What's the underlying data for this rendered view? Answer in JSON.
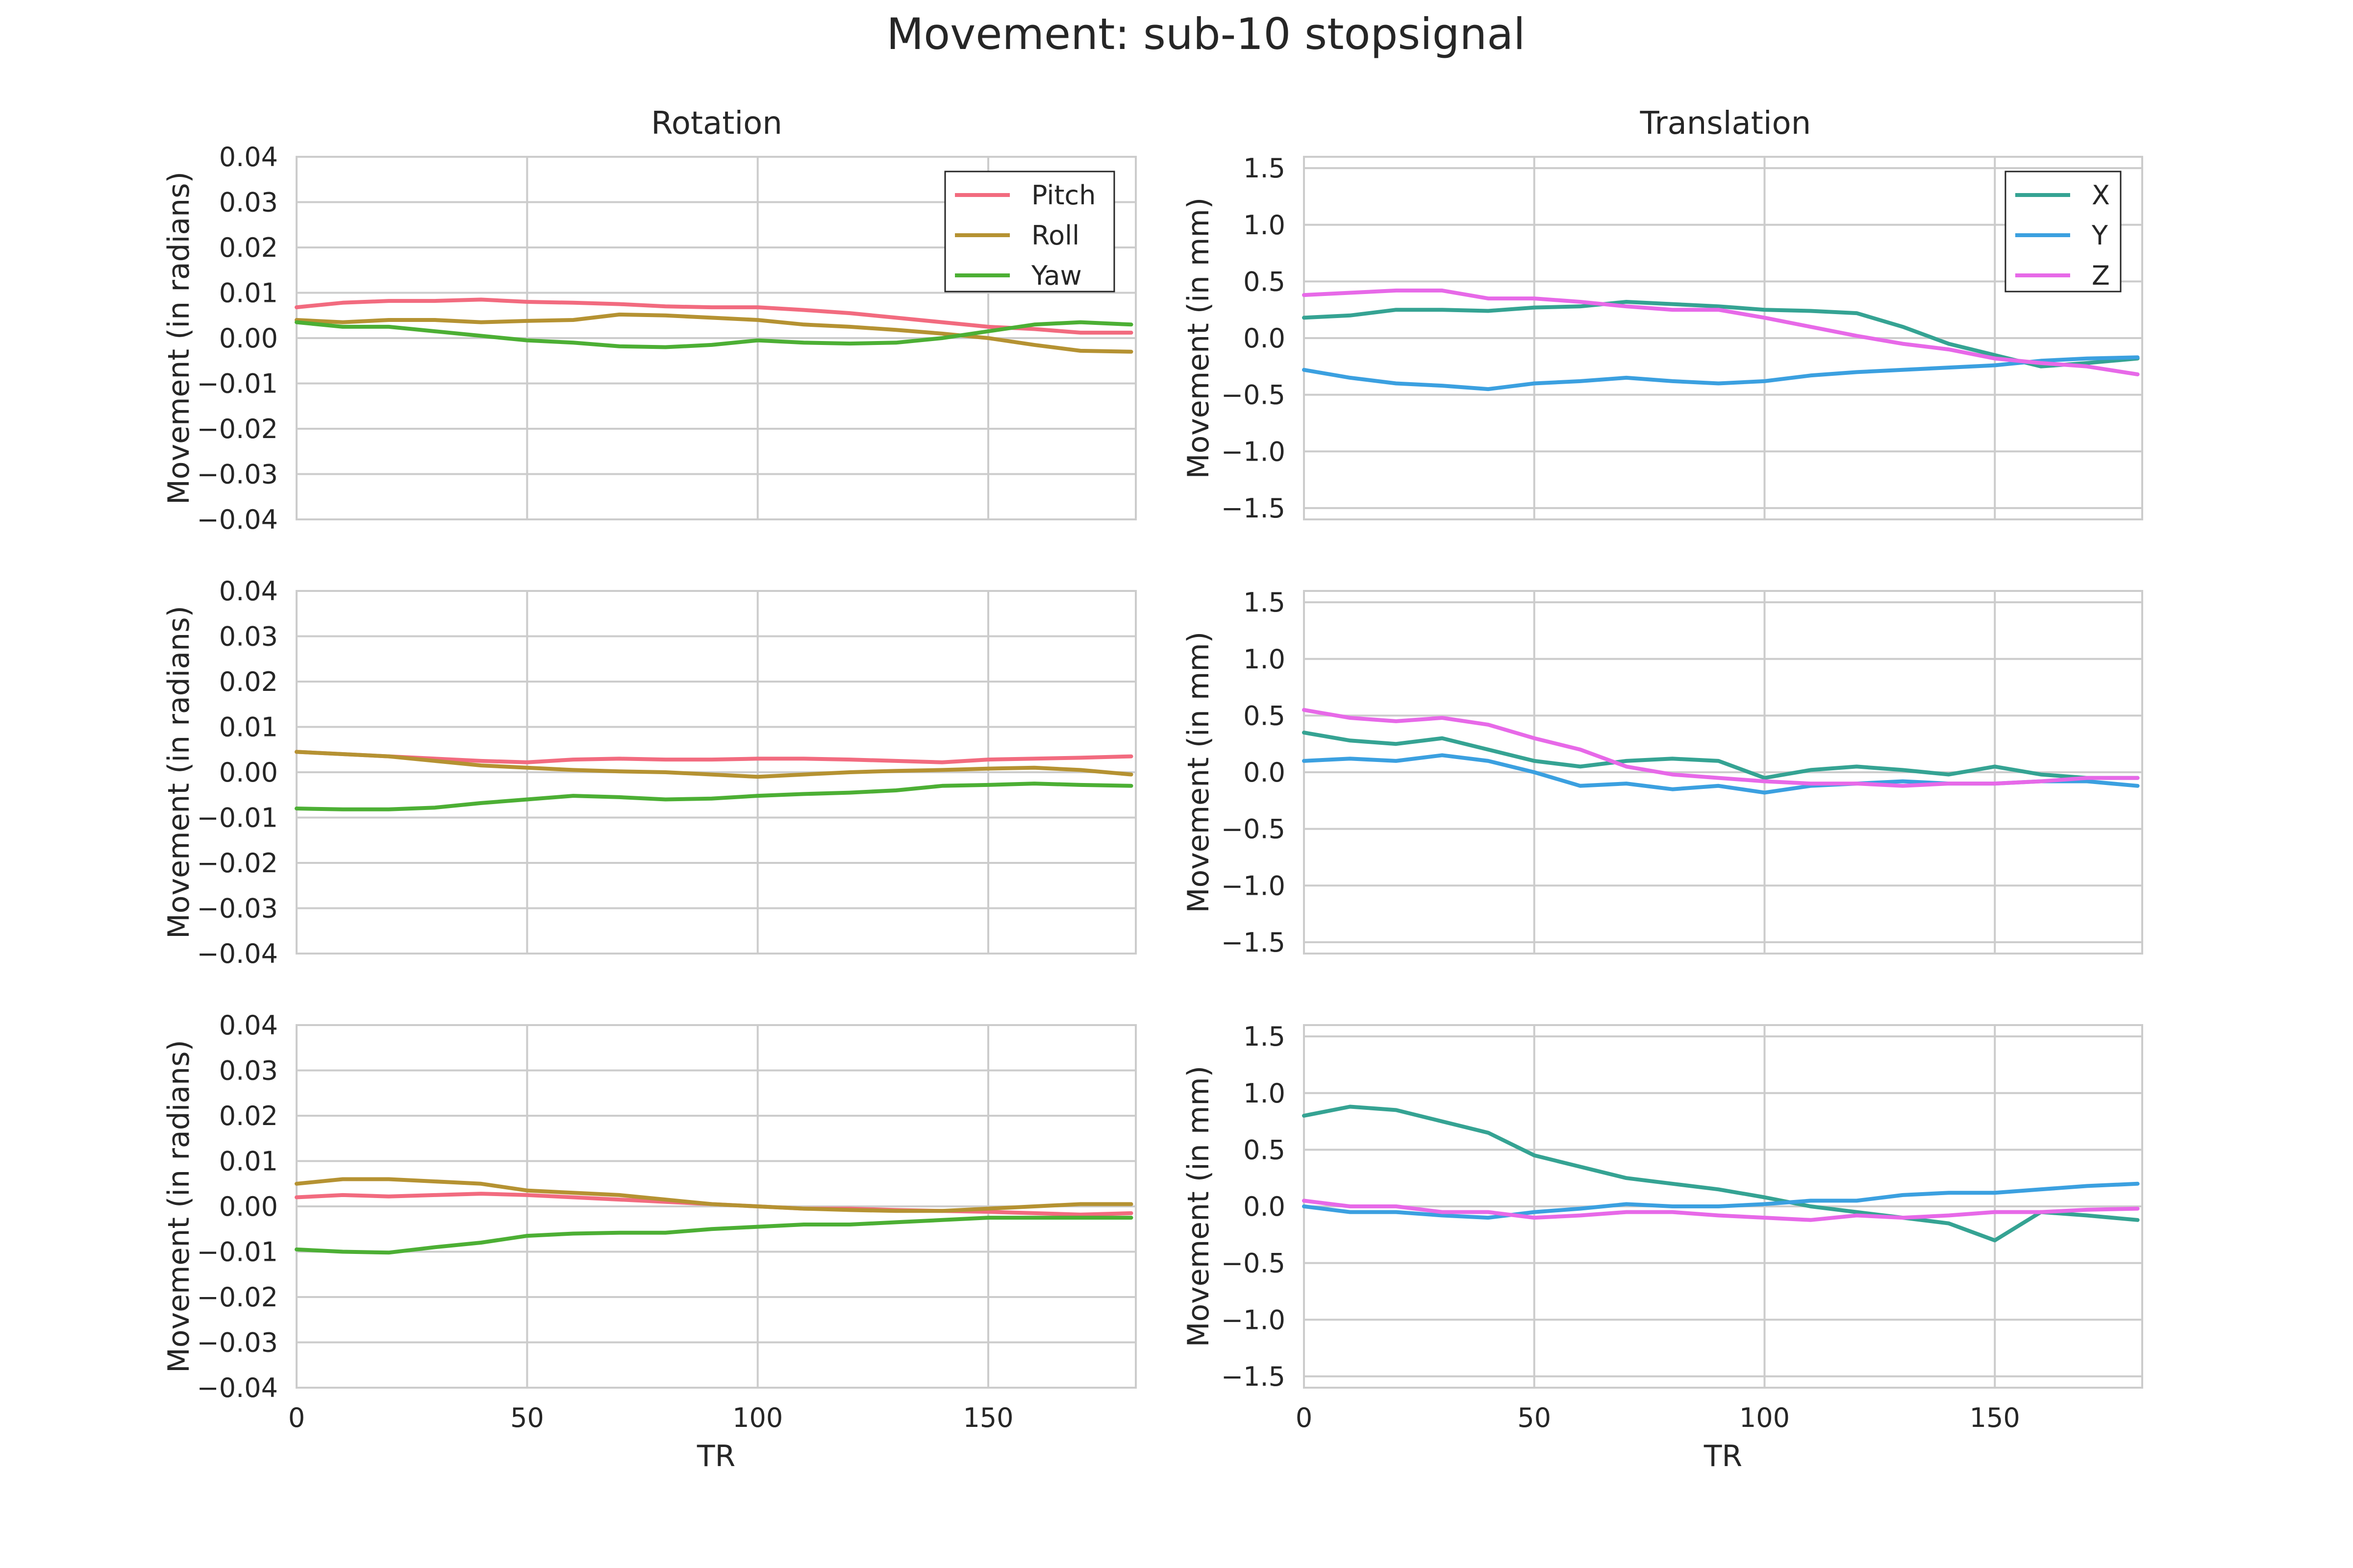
{
  "figure": {
    "suptitle": "Movement: sub-10 stopsignal",
    "col_titles": [
      "Rotation",
      "Translation"
    ]
  },
  "colors": {
    "Pitch": "#f26b7f",
    "Roll": "#b59232",
    "Yaw": "#4caf34",
    "X": "#35a393",
    "Y": "#3ba0e0",
    "Z": "#e769e8",
    "grid": "#cccccc",
    "frame": "#cccccc"
  },
  "chart_data": [
    {
      "type": "line",
      "row": 0,
      "col": 0,
      "title": "Rotation",
      "xlabel": "",
      "ylabel": "Movement (in radians)",
      "xlim": [
        0,
        182
      ],
      "ylim": [
        -0.04,
        0.04
      ],
      "xticks": [
        0,
        50,
        100,
        150
      ],
      "xticklabels": [],
      "yticks": [
        -0.04,
        -0.03,
        -0.02,
        -0.01,
        0.0,
        0.01,
        0.02,
        0.03,
        0.04
      ],
      "yticklabels": [
        "−0.04",
        "−0.03",
        "−0.02",
        "−0.01",
        "0.00",
        "0.01",
        "0.02",
        "0.03",
        "0.04"
      ],
      "legend": "top-right",
      "series": [
        {
          "name": "Pitch",
          "x": [
            0,
            10,
            20,
            30,
            40,
            50,
            60,
            70,
            80,
            90,
            100,
            110,
            120,
            130,
            140,
            150,
            160,
            170,
            181
          ],
          "values": [
            0.0068,
            0.0078,
            0.0082,
            0.0082,
            0.0085,
            0.008,
            0.0078,
            0.0075,
            0.007,
            0.0068,
            0.0068,
            0.0062,
            0.0055,
            0.0045,
            0.0035,
            0.0025,
            0.002,
            0.0012,
            0.0012
          ]
        },
        {
          "name": "Roll",
          "x": [
            0,
            10,
            20,
            30,
            40,
            50,
            60,
            70,
            80,
            90,
            100,
            110,
            120,
            130,
            140,
            150,
            160,
            170,
            181
          ],
          "values": [
            0.004,
            0.0035,
            0.004,
            0.004,
            0.0035,
            0.0038,
            0.004,
            0.0052,
            0.005,
            0.0045,
            0.004,
            0.003,
            0.0025,
            0.0018,
            0.001,
            0.0,
            -0.0015,
            -0.0028,
            -0.003
          ]
        },
        {
          "name": "Yaw",
          "x": [
            0,
            10,
            20,
            30,
            40,
            50,
            60,
            70,
            80,
            90,
            100,
            110,
            120,
            130,
            140,
            150,
            160,
            170,
            181
          ],
          "values": [
            0.0035,
            0.0025,
            0.0025,
            0.0015,
            0.0005,
            -0.0005,
            -0.001,
            -0.0018,
            -0.002,
            -0.0015,
            -0.0005,
            -0.001,
            -0.0012,
            -0.001,
            0.0,
            0.0015,
            0.003,
            0.0035,
            0.003
          ]
        }
      ]
    },
    {
      "type": "line",
      "row": 0,
      "col": 1,
      "title": "Translation",
      "xlabel": "",
      "ylabel": "Movement (in mm)",
      "xlim": [
        0,
        182
      ],
      "ylim": [
        -1.6,
        1.6
      ],
      "xticks": [
        0,
        50,
        100,
        150
      ],
      "xticklabels": [],
      "yticks": [
        -1.5,
        -1.0,
        -0.5,
        0.0,
        0.5,
        1.0,
        1.5
      ],
      "yticklabels": [
        "−1.5",
        "−1.0",
        "−0.5",
        "0.0",
        "0.5",
        "1.0",
        "1.5"
      ],
      "legend": "top-right",
      "series": [
        {
          "name": "X",
          "x": [
            0,
            10,
            20,
            30,
            40,
            50,
            60,
            70,
            80,
            90,
            100,
            110,
            120,
            130,
            140,
            150,
            160,
            170,
            181
          ],
          "values": [
            0.18,
            0.2,
            0.25,
            0.25,
            0.24,
            0.27,
            0.28,
            0.32,
            0.3,
            0.28,
            0.25,
            0.24,
            0.22,
            0.1,
            -0.05,
            -0.15,
            -0.25,
            -0.22,
            -0.18
          ]
        },
        {
          "name": "Y",
          "x": [
            0,
            10,
            20,
            30,
            40,
            50,
            60,
            70,
            80,
            90,
            100,
            110,
            120,
            130,
            140,
            150,
            160,
            170,
            181
          ],
          "values": [
            -0.28,
            -0.35,
            -0.4,
            -0.42,
            -0.45,
            -0.4,
            -0.38,
            -0.35,
            -0.38,
            -0.4,
            -0.38,
            -0.33,
            -0.3,
            -0.28,
            -0.26,
            -0.24,
            -0.2,
            -0.18,
            -0.17
          ]
        },
        {
          "name": "Z",
          "x": [
            0,
            10,
            20,
            30,
            40,
            50,
            60,
            70,
            80,
            90,
            100,
            110,
            120,
            130,
            140,
            150,
            160,
            170,
            181
          ],
          "values": [
            0.38,
            0.4,
            0.42,
            0.42,
            0.35,
            0.35,
            0.32,
            0.28,
            0.25,
            0.25,
            0.18,
            0.1,
            0.02,
            -0.05,
            -0.1,
            -0.18,
            -0.22,
            -0.25,
            -0.32
          ]
        }
      ]
    },
    {
      "type": "line",
      "row": 1,
      "col": 0,
      "title": "",
      "xlabel": "",
      "ylabel": "Movement (in radians)",
      "xlim": [
        0,
        182
      ],
      "ylim": [
        -0.04,
        0.04
      ],
      "xticks": [
        0,
        50,
        100,
        150
      ],
      "xticklabels": [],
      "yticks": [
        -0.04,
        -0.03,
        -0.02,
        -0.01,
        0.0,
        0.01,
        0.02,
        0.03,
        0.04
      ],
      "yticklabels": [
        "−0.04",
        "−0.03",
        "−0.02",
        "−0.01",
        "0.00",
        "0.01",
        "0.02",
        "0.03",
        "0.04"
      ],
      "legend": "",
      "series": [
        {
          "name": "Pitch",
          "x": [
            0,
            10,
            20,
            30,
            40,
            50,
            60,
            70,
            80,
            90,
            100,
            110,
            120,
            130,
            140,
            150,
            160,
            170,
            181
          ],
          "values": [
            0.0045,
            0.004,
            0.0035,
            0.003,
            0.0025,
            0.0022,
            0.0028,
            0.003,
            0.0028,
            0.0028,
            0.003,
            0.003,
            0.0028,
            0.0025,
            0.0022,
            0.0028,
            0.003,
            0.0032,
            0.0035
          ]
        },
        {
          "name": "Roll",
          "x": [
            0,
            10,
            20,
            30,
            40,
            50,
            60,
            70,
            80,
            90,
            100,
            110,
            120,
            130,
            140,
            150,
            160,
            170,
            181
          ],
          "values": [
            0.0045,
            0.004,
            0.0035,
            0.0025,
            0.0015,
            0.001,
            0.0005,
            0.0002,
            0.0,
            -0.0005,
            -0.001,
            -0.0005,
            0.0,
            0.0003,
            0.0005,
            0.0008,
            0.001,
            0.0005,
            -0.0005
          ]
        },
        {
          "name": "Yaw",
          "x": [
            0,
            10,
            20,
            30,
            40,
            50,
            60,
            70,
            80,
            90,
            100,
            110,
            120,
            130,
            140,
            150,
            160,
            170,
            181
          ],
          "values": [
            -0.008,
            -0.0082,
            -0.0082,
            -0.0078,
            -0.0068,
            -0.006,
            -0.0052,
            -0.0055,
            -0.006,
            -0.0058,
            -0.0052,
            -0.0048,
            -0.0045,
            -0.004,
            -0.003,
            -0.0028,
            -0.0025,
            -0.0028,
            -0.003
          ]
        }
      ]
    },
    {
      "type": "line",
      "row": 1,
      "col": 1,
      "title": "",
      "xlabel": "",
      "ylabel": "Movement (in mm)",
      "xlim": [
        0,
        182
      ],
      "ylim": [
        -1.6,
        1.6
      ],
      "xticks": [
        0,
        50,
        100,
        150
      ],
      "xticklabels": [],
      "yticks": [
        -1.5,
        -1.0,
        -0.5,
        0.0,
        0.5,
        1.0,
        1.5
      ],
      "yticklabels": [
        "−1.5",
        "−1.0",
        "−0.5",
        "0.0",
        "0.5",
        "1.0",
        "1.5"
      ],
      "legend": "",
      "series": [
        {
          "name": "X",
          "x": [
            0,
            10,
            20,
            30,
            40,
            50,
            60,
            70,
            80,
            90,
            100,
            110,
            120,
            130,
            140,
            150,
            160,
            170,
            181
          ],
          "values": [
            0.35,
            0.28,
            0.25,
            0.3,
            0.2,
            0.1,
            0.05,
            0.1,
            0.12,
            0.1,
            -0.05,
            0.02,
            0.05,
            0.02,
            -0.02,
            0.05,
            -0.02,
            -0.05,
            -0.05
          ]
        },
        {
          "name": "Y",
          "x": [
            0,
            10,
            20,
            30,
            40,
            50,
            60,
            70,
            80,
            90,
            100,
            110,
            120,
            130,
            140,
            150,
            160,
            170,
            181
          ],
          "values": [
            0.1,
            0.12,
            0.1,
            0.15,
            0.1,
            0.0,
            -0.12,
            -0.1,
            -0.15,
            -0.12,
            -0.18,
            -0.12,
            -0.1,
            -0.08,
            -0.1,
            -0.1,
            -0.08,
            -0.08,
            -0.12
          ]
        },
        {
          "name": "Z",
          "x": [
            0,
            10,
            20,
            30,
            40,
            50,
            60,
            70,
            80,
            90,
            100,
            110,
            120,
            130,
            140,
            150,
            160,
            170,
            181
          ],
          "values": [
            0.55,
            0.48,
            0.45,
            0.48,
            0.42,
            0.3,
            0.2,
            0.05,
            -0.02,
            -0.05,
            -0.08,
            -0.1,
            -0.1,
            -0.12,
            -0.1,
            -0.1,
            -0.08,
            -0.05,
            -0.05
          ]
        }
      ]
    },
    {
      "type": "line",
      "row": 2,
      "col": 0,
      "title": "",
      "xlabel": "TR",
      "ylabel": "Movement (in radians)",
      "xlim": [
        0,
        182
      ],
      "ylim": [
        -0.04,
        0.04
      ],
      "xticks": [
        0,
        50,
        100,
        150
      ],
      "xticklabels": [
        "0",
        "50",
        "100",
        "150"
      ],
      "yticks": [
        -0.04,
        -0.03,
        -0.02,
        -0.01,
        0.0,
        0.01,
        0.02,
        0.03,
        0.04
      ],
      "yticklabels": [
        "−0.04",
        "−0.03",
        "−0.02",
        "−0.01",
        "0.00",
        "0.01",
        "0.02",
        "0.03",
        "0.04"
      ],
      "legend": "",
      "series": [
        {
          "name": "Pitch",
          "x": [
            0,
            10,
            20,
            30,
            40,
            50,
            60,
            70,
            80,
            90,
            100,
            110,
            120,
            130,
            140,
            150,
            160,
            170,
            181
          ],
          "values": [
            0.002,
            0.0025,
            0.0022,
            0.0025,
            0.0028,
            0.0025,
            0.002,
            0.0015,
            0.001,
            0.0005,
            0.0,
            -0.0005,
            -0.0005,
            -0.0008,
            -0.001,
            -0.0012,
            -0.0015,
            -0.0018,
            -0.0015
          ]
        },
        {
          "name": "Roll",
          "x": [
            0,
            10,
            20,
            30,
            40,
            50,
            60,
            70,
            80,
            90,
            100,
            110,
            120,
            130,
            140,
            150,
            160,
            170,
            181
          ],
          "values": [
            0.005,
            0.006,
            0.006,
            0.0055,
            0.005,
            0.0035,
            0.003,
            0.0025,
            0.0015,
            0.0005,
            0.0,
            -0.0005,
            -0.0008,
            -0.001,
            -0.001,
            -0.0005,
            0.0,
            0.0005,
            0.0005
          ]
        },
        {
          "name": "Yaw",
          "x": [
            0,
            10,
            20,
            30,
            40,
            50,
            60,
            70,
            80,
            90,
            100,
            110,
            120,
            130,
            140,
            150,
            160,
            170,
            181
          ],
          "values": [
            -0.0095,
            -0.01,
            -0.0102,
            -0.009,
            -0.008,
            -0.0065,
            -0.006,
            -0.0058,
            -0.0058,
            -0.005,
            -0.0045,
            -0.004,
            -0.004,
            -0.0035,
            -0.003,
            -0.0025,
            -0.0025,
            -0.0025,
            -0.0025
          ]
        }
      ]
    },
    {
      "type": "line",
      "row": 2,
      "col": 1,
      "title": "",
      "xlabel": "TR",
      "ylabel": "Movement (in mm)",
      "xlim": [
        0,
        182
      ],
      "ylim": [
        -1.6,
        1.6
      ],
      "xticks": [
        0,
        50,
        100,
        150
      ],
      "xticklabels": [
        "0",
        "50",
        "100",
        "150"
      ],
      "yticks": [
        -1.5,
        -1.0,
        -0.5,
        0.0,
        0.5,
        1.0,
        1.5
      ],
      "yticklabels": [
        "−1.5",
        "−1.0",
        "−0.5",
        "0.0",
        "0.5",
        "1.0",
        "1.5"
      ],
      "legend": "",
      "series": [
        {
          "name": "X",
          "x": [
            0,
            10,
            20,
            30,
            40,
            50,
            60,
            70,
            80,
            90,
            100,
            110,
            120,
            130,
            140,
            150,
            160,
            170,
            181
          ],
          "values": [
            0.8,
            0.88,
            0.85,
            0.75,
            0.65,
            0.45,
            0.35,
            0.25,
            0.2,
            0.15,
            0.08,
            0.0,
            -0.05,
            -0.1,
            -0.15,
            -0.3,
            -0.05,
            -0.08,
            -0.12
          ]
        },
        {
          "name": "Y",
          "x": [
            0,
            10,
            20,
            30,
            40,
            50,
            60,
            70,
            80,
            90,
            100,
            110,
            120,
            130,
            140,
            150,
            160,
            170,
            181
          ],
          "values": [
            0.0,
            -0.05,
            -0.05,
            -0.08,
            -0.1,
            -0.05,
            -0.02,
            0.02,
            0.0,
            0.0,
            0.02,
            0.05,
            0.05,
            0.1,
            0.12,
            0.12,
            0.15,
            0.18,
            0.2
          ]
        },
        {
          "name": "Z",
          "x": [
            0,
            10,
            20,
            30,
            40,
            50,
            60,
            70,
            80,
            90,
            100,
            110,
            120,
            130,
            140,
            150,
            160,
            170,
            181
          ],
          "values": [
            0.05,
            0.0,
            0.0,
            -0.05,
            -0.05,
            -0.1,
            -0.08,
            -0.05,
            -0.05,
            -0.08,
            -0.1,
            -0.12,
            -0.08,
            -0.1,
            -0.08,
            -0.05,
            -0.05,
            -0.03,
            -0.02
          ]
        }
      ]
    }
  ]
}
